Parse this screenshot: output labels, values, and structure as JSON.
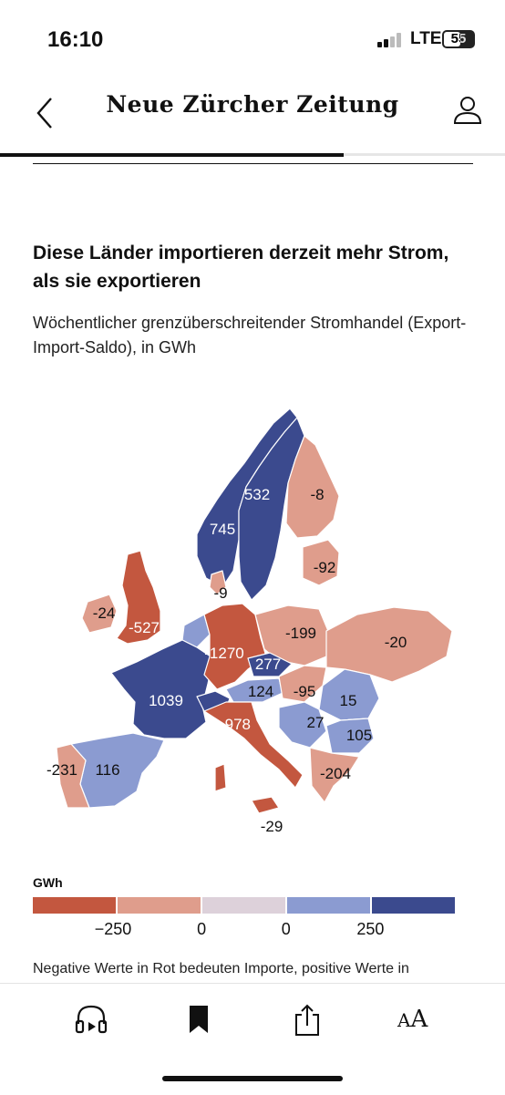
{
  "status": {
    "time": "16:10",
    "network": "LTE",
    "battery": "55"
  },
  "header": {
    "brand": "Neue Zürcher Zeitung"
  },
  "reading_progress": 0.68,
  "article": {
    "headline": "Diese Länder importieren derzeit mehr Strom, als sie exportieren",
    "subtitle": "Wöchentlicher grenzüberschreitender Stromhandel (Export-Import-Saldo), in GWh"
  },
  "colors": {
    "strong_import": "#c3573f",
    "import": "#df9d8c",
    "neutral": "#ddd1da",
    "export": "#8b9bd1",
    "strong_export": "#3b4a8e"
  },
  "map": {
    "labels": {
      "norway": "745",
      "sweden": "532",
      "finland": "-8",
      "baltics": "-92",
      "ireland": "-24",
      "uk": "-527",
      "denmark": "-9",
      "germany": "-1270",
      "poland": "-199",
      "ukraine": "-20",
      "czechia": "277",
      "austria": "124",
      "hungary": "-95",
      "romania": "15",
      "serbia": "27",
      "bulgaria": "105",
      "france": "1039",
      "italy": "-978",
      "greece": "-204",
      "spain": "116",
      "portugal": "-231",
      "sicily": "-29"
    }
  },
  "legend": {
    "title": "GWh",
    "ticks": [
      "−250",
      "0",
      "0",
      "250"
    ]
  },
  "note": "Negative Werte in Rot bedeuten Importe, positive Werte in",
  "toolbar": {
    "listen": "headphones-icon",
    "bookmark": "bookmark-icon",
    "share": "share-icon",
    "text_size": "A"
  }
}
